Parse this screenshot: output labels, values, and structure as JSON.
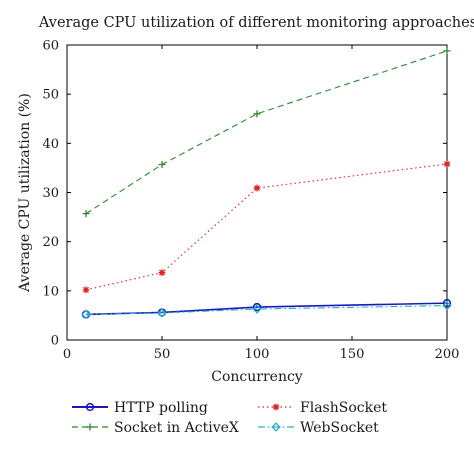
{
  "chart_data": {
    "type": "line",
    "title": "Average CPU utilization of different monitoring approaches",
    "xlabel": "Concurrency",
    "ylabel": "Average CPU utilization (%)",
    "xlim": [
      0,
      200
    ],
    "ylim": [
      0,
      60
    ],
    "xticks": [
      0,
      50,
      100,
      150,
      200
    ],
    "yticks": [
      0,
      10,
      20,
      30,
      40,
      50,
      60
    ],
    "grid": false,
    "legend_position": "bottom",
    "x": [
      10,
      50,
      100,
      200
    ],
    "series": [
      {
        "name": "HTTP polling",
        "values": [
          5.2,
          5.6,
          6.7,
          7.5
        ],
        "color": "#1a1ab8",
        "line": "solid",
        "marker": "circle"
      },
      {
        "name": "Socket in ActiveX",
        "values": [
          25.7,
          35.7,
          46.0,
          58.8
        ],
        "color": "#2a8a2a",
        "line": "dashed",
        "marker": "plus"
      },
      {
        "name": "FlashSocket",
        "values": [
          10.2,
          13.7,
          30.9,
          35.8
        ],
        "color": "#e02020",
        "line": "dotted",
        "marker": "star"
      },
      {
        "name": "WebSocket",
        "values": [
          5.2,
          5.5,
          6.3,
          7.0
        ],
        "color": "#22b0c8",
        "line": "dashdot",
        "marker": "diamond"
      }
    ]
  }
}
